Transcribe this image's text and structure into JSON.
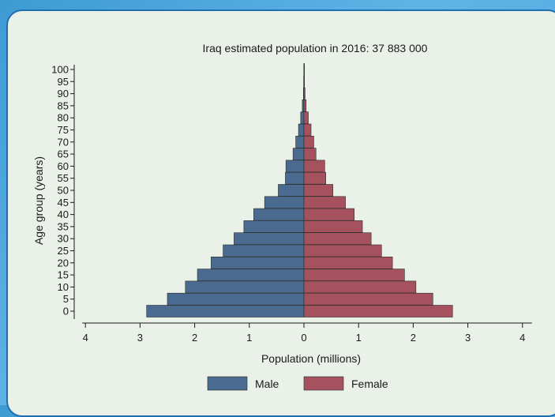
{
  "chart_data": {
    "type": "bar",
    "title": "Iraq estimated population in 2016: 37 883 000",
    "xlabel": "Population (millions)",
    "ylabel": "Age group (years)",
    "xlim": [
      -4,
      4
    ],
    "x_ticks": [
      -4,
      -3,
      -2,
      -1,
      0,
      1,
      2,
      3,
      4
    ],
    "x_tick_labels": [
      "4",
      "3",
      "2",
      "1",
      "0",
      "1",
      "2",
      "3",
      "4"
    ],
    "categories": [
      "0",
      "5",
      "10",
      "15",
      "20",
      "25",
      "30",
      "35",
      "40",
      "45",
      "50",
      "55",
      "60",
      "65",
      "70",
      "75",
      "80",
      "85",
      "90",
      "95",
      "100"
    ],
    "series": [
      {
        "name": "Male",
        "color": "#4a6b8f",
        "values": [
          -2.88,
          -2.5,
          -2.17,
          -1.95,
          -1.7,
          -1.48,
          -1.28,
          -1.1,
          -0.92,
          -0.72,
          -0.47,
          -0.34,
          -0.33,
          -0.2,
          -0.15,
          -0.1,
          -0.06,
          -0.03,
          -0.01,
          -0.005,
          -0.002
        ]
      },
      {
        "name": "Female",
        "color": "#a5525e",
        "values": [
          2.72,
          2.36,
          2.05,
          1.84,
          1.62,
          1.42,
          1.23,
          1.07,
          0.92,
          0.76,
          0.53,
          0.4,
          0.38,
          0.22,
          0.18,
          0.13,
          0.08,
          0.04,
          0.02,
          0.01,
          0.005
        ]
      }
    ],
    "grid": false,
    "legend_position": "bottom"
  }
}
